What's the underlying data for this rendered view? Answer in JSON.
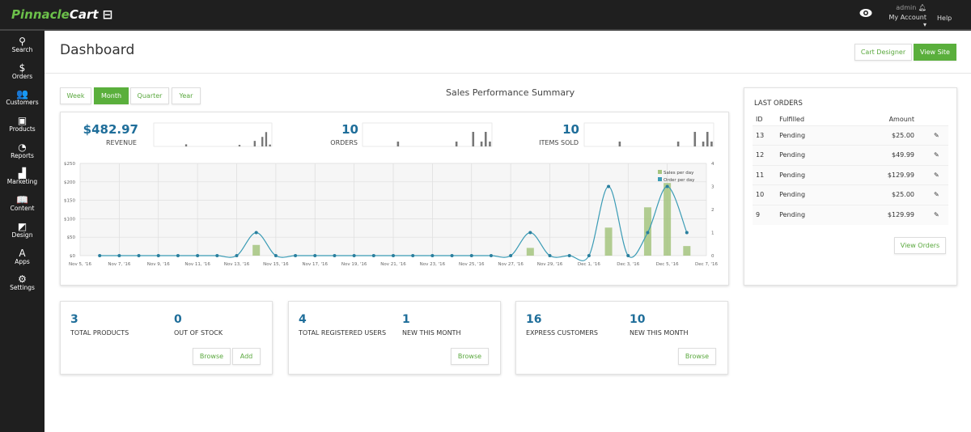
{
  "topbar": {
    "logo_a": "Pinnacle",
    "logo_b": "Cart",
    "user": "admin",
    "account": "My Account",
    "help": "Help"
  },
  "sidebar": {
    "items": [
      {
        "label": "Search",
        "icon": "search-icon",
        "g": "⚲"
      },
      {
        "label": "Orders",
        "icon": "dollar-icon",
        "g": "$"
      },
      {
        "label": "Customers",
        "icon": "users-icon",
        "g": "👥"
      },
      {
        "label": "Products",
        "icon": "products-icon",
        "g": "▣"
      },
      {
        "label": "Reports",
        "icon": "pie-chart-icon",
        "g": "◔"
      },
      {
        "label": "Marketing",
        "icon": "bar-chart-icon",
        "g": "▟"
      },
      {
        "label": "Content",
        "icon": "book-icon",
        "g": "📖"
      },
      {
        "label": "Design",
        "icon": "design-icon",
        "g": "◩"
      },
      {
        "label": "Apps",
        "icon": "apps-icon",
        "g": "A"
      },
      {
        "label": "Settings",
        "icon": "gear-icon",
        "g": "⚙"
      }
    ]
  },
  "header": {
    "title": "Dashboard",
    "cart_designer": "Cart Designer",
    "view_site": "View Site"
  },
  "tabs": [
    {
      "label": "Week"
    },
    {
      "label": "Month",
      "active": true
    },
    {
      "label": "Quarter"
    },
    {
      "label": "Year"
    }
  ],
  "summary": {
    "title": "Sales Performance Summary",
    "revenue": "$482.97",
    "revenue_label": "REVENUE",
    "orders": "10",
    "orders_label": "ORDERS",
    "items": "10",
    "items_label": "ITEMS SOLD"
  },
  "chart_data": {
    "type": "bar+line",
    "x_tick_labels": [
      "Nov 5, '16",
      "Nov 7, '16",
      "Nov 9, '16",
      "Nov 11, '16",
      "Nov 13, '16",
      "Nov 15, '16",
      "Nov 17, '16",
      "Nov 19, '16",
      "Nov 21, '16",
      "Nov 23, '16",
      "Nov 25, '16",
      "Nov 27, '16",
      "Nov 29, '16",
      "Dec 1, '16",
      "Dec 3, '16",
      "Dec 5, '16",
      "Dec 7, '16"
    ],
    "y_left_ticks": [
      "$0",
      "$50",
      "$100",
      "$150",
      "$200",
      "$250"
    ],
    "y_left_range": [
      0,
      250
    ],
    "y_right_ticks": [
      "0",
      "1",
      "2",
      "3",
      "4"
    ],
    "y_right_range": [
      0,
      4
    ],
    "grid": true,
    "legend_position": "top-right",
    "dates": [
      "Nov 6",
      "Nov 7",
      "Nov 8",
      "Nov 9",
      "Nov 10",
      "Nov 11",
      "Nov 12",
      "Nov 13",
      "Nov 14",
      "Nov 15",
      "Nov 16",
      "Nov 17",
      "Nov 18",
      "Nov 19",
      "Nov 20",
      "Nov 21",
      "Nov 22",
      "Nov 23",
      "Nov 24",
      "Nov 25",
      "Nov 26",
      "Nov 27",
      "Nov 28",
      "Nov 29",
      "Nov 30",
      "Dec 1",
      "Dec 2",
      "Dec 3",
      "Dec 4",
      "Dec 5",
      "Dec 6"
    ],
    "series": [
      {
        "name": "Sales per day",
        "type": "bar",
        "color": "#a5c47f",
        "values": [
          0,
          0,
          0,
          0,
          0,
          0,
          0,
          0,
          29,
          0,
          0,
          0,
          0,
          0,
          0,
          0,
          0,
          0,
          0,
          0,
          0,
          0,
          21,
          0,
          0,
          0,
          76,
          0,
          131,
          197,
          26
        ]
      },
      {
        "name": "Order per day",
        "type": "line",
        "color": "#3a9bb5",
        "values": [
          0,
          0,
          0,
          0,
          0,
          0,
          0,
          0,
          1,
          0,
          0,
          0,
          0,
          0,
          0,
          0,
          0,
          0,
          0,
          0,
          0,
          0,
          1,
          0,
          0,
          0,
          3,
          0,
          1,
          3,
          1
        ]
      }
    ]
  },
  "orders": {
    "title": "LAST ORDERS",
    "headers": [
      "ID",
      "Fulfilled",
      "Amount"
    ],
    "rows": [
      {
        "id": "13",
        "status": "Pending",
        "amount": "$25.00"
      },
      {
        "id": "12",
        "status": "Pending",
        "amount": "$49.99"
      },
      {
        "id": "11",
        "status": "Pending",
        "amount": "$129.99"
      },
      {
        "id": "10",
        "status": "Pending",
        "amount": "$25.00"
      },
      {
        "id": "9",
        "status": "Pending",
        "amount": "$129.99"
      }
    ],
    "view": "View Orders"
  },
  "cards": [
    {
      "a": "3",
      "al": "TOTAL PRODUCTS",
      "b": "0",
      "bl": "OUT OF STOCK",
      "buttons": [
        "Browse",
        "Add"
      ]
    },
    {
      "a": "4",
      "al": "TOTAL REGISTERED USERS",
      "b": "1",
      "bl": "NEW THIS MONTH",
      "buttons": [
        "Browse"
      ]
    },
    {
      "a": "16",
      "al": "EXPRESS CUSTOMERS",
      "b": "10",
      "bl": "NEW THIS MONTH",
      "buttons": [
        "Browse"
      ]
    }
  ]
}
